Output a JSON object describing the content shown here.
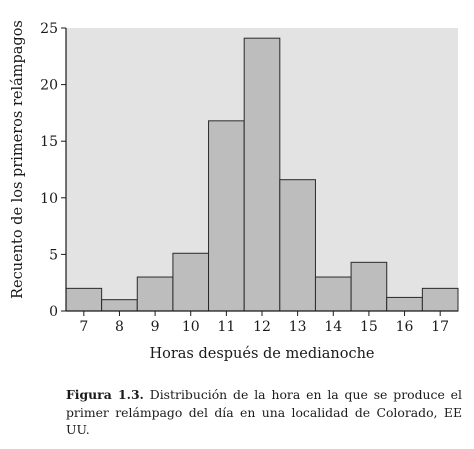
{
  "chart_data": {
    "type": "bar",
    "categories": [
      "7",
      "8",
      "9",
      "10",
      "11",
      "12",
      "13",
      "14",
      "15",
      "16",
      "17"
    ],
    "values": [
      2,
      1,
      3,
      5.1,
      16.8,
      24.1,
      11.6,
      3,
      4.3,
      1.2,
      2
    ],
    "xlabel": "Horas después de medianoche",
    "ylabel": "Recuento de los primeros relámpagos",
    "ylim": [
      0,
      25
    ],
    "yticks": [
      0,
      5,
      10,
      15,
      20,
      25
    ],
    "grid": false,
    "colors": {
      "bar_fill": "#bdbdbd",
      "bar_stroke": "#2a2a2a",
      "plot_bg": "#e3e3e3"
    }
  },
  "caption": {
    "label": "Figura 1.3.",
    "text": "Distribución de la hora en la que se produce el primer relámpago del día en una localidad de Colorado, EE UU."
  }
}
